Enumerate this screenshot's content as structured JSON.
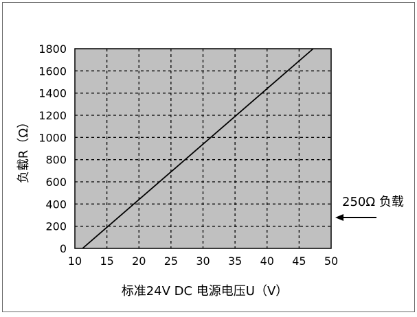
{
  "chart_data": {
    "type": "line",
    "title": "",
    "xlabel": "标准24V DC  电源电压U（V）",
    "ylabel": "负载R（Ω）",
    "xlim": [
      10,
      50
    ],
    "ylim": [
      0,
      1800
    ],
    "x_ticks": [
      10,
      15,
      20,
      25,
      30,
      35,
      40,
      45,
      50
    ],
    "y_ticks": [
      0,
      200,
      400,
      600,
      800,
      1000,
      1200,
      1400,
      1600,
      1800
    ],
    "grid": true,
    "series": [
      {
        "x": [
          11.2,
          47.2
        ],
        "y": [
          0,
          1800
        ]
      }
    ],
    "annotations": [
      {
        "text": "250Ω 负载",
        "arrow": "pointing-left",
        "y": 250
      }
    ],
    "colors": {
      "plot_background": "#c0c0c0",
      "line": "#000000",
      "grid": "#000000"
    }
  }
}
